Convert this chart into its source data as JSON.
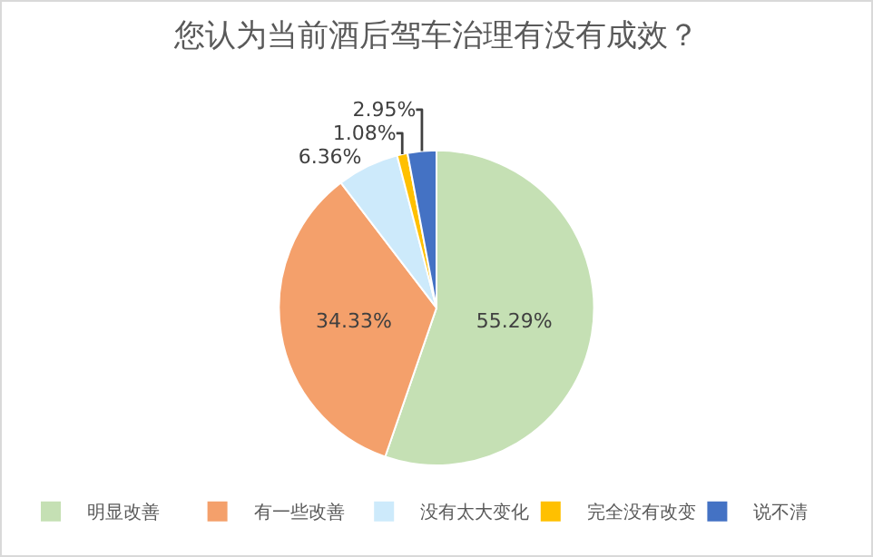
{
  "chart_data": {
    "type": "pie",
    "title": "您认为当前酒后驾车治理有没有成效？",
    "categories": [
      "明显改善",
      "有一些改善",
      "没有太大变化",
      "完全没有改变",
      "说不清"
    ],
    "values": [
      55.29,
      34.33,
      6.36,
      1.08,
      2.95
    ],
    "colors": [
      "#c5e0b4",
      "#f4a06b",
      "#cdeafb",
      "#ffc000",
      "#4472c4"
    ],
    "value_labels": [
      "55.29%",
      "34.33%",
      "6.36%",
      "1.08%",
      "2.95%"
    ],
    "legend": "bottom"
  }
}
